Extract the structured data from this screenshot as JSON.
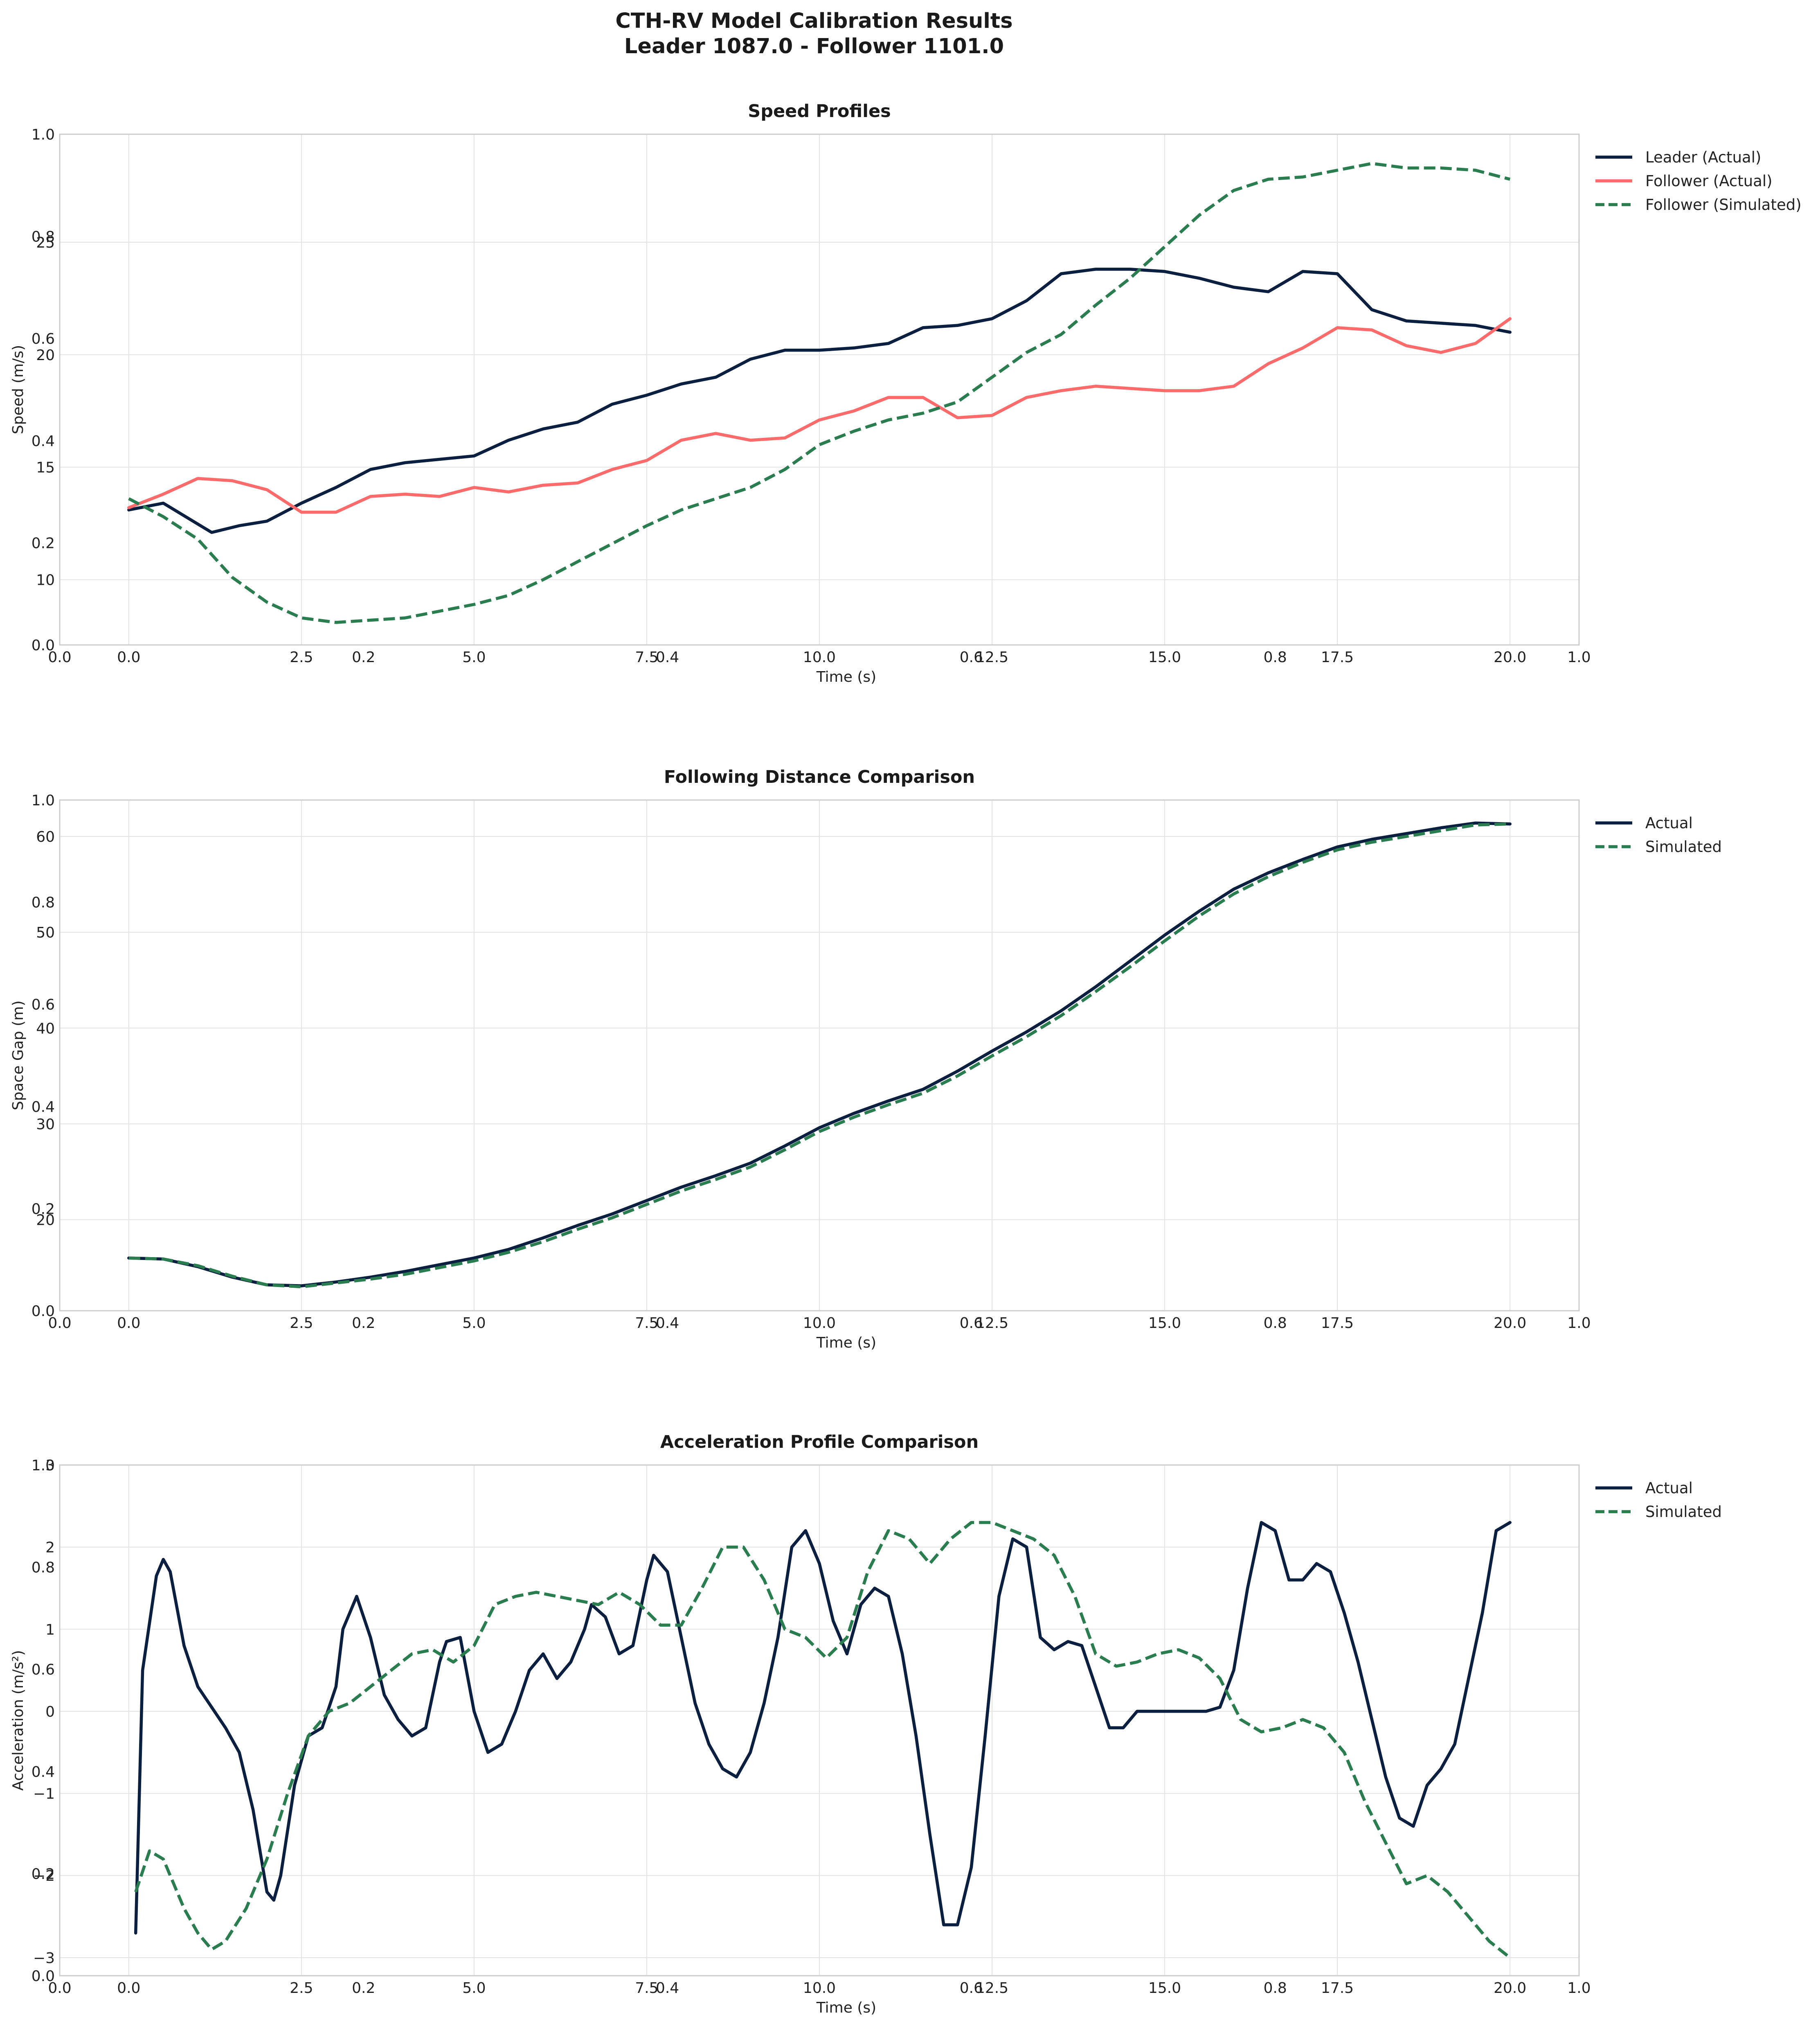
{
  "figure": {
    "title_line1": "CTH-RV Model Calibration Results",
    "title_line2": "Leader 1087.0 - Follower 1101.0"
  },
  "colors": {
    "leader": "#0b1f40",
    "follower_actual": "#ff6b6b",
    "simulated": "#2a7d4f"
  },
  "chart_data": [
    {
      "type": "line",
      "title": "Speed Profiles",
      "xlabel": "Time (s)",
      "ylabel": "Speed (m/s)",
      "xlim": [
        -1.0,
        21.0
      ],
      "ylim": [
        7.1,
        29.8
      ],
      "x_ticks": [
        "0.0",
        "2.5",
        "5.0",
        "7.5",
        "10.0",
        "12.5",
        "15.0",
        "17.5",
        "20.0"
      ],
      "y_ticks": [
        "10",
        "15",
        "20",
        "25"
      ],
      "overlay_x_ticks": [
        "0.0",
        "0.2",
        "0.4",
        "0.6",
        "0.8",
        "1.0"
      ],
      "overlay_y_ticks": [
        "0.0",
        "0.2",
        "0.4",
        "0.6",
        "0.8",
        "1.0"
      ],
      "grid": true,
      "legend_position": "outside top-right",
      "series": [
        {
          "name": "Leader (Actual)",
          "style": "solid",
          "color": "#0b1f40",
          "x": [
            0,
            0.5,
            1.2,
            1.6,
            2.0,
            2.5,
            3.0,
            3.5,
            4.0,
            5.0,
            5.5,
            6.0,
            6.5,
            7.0,
            7.5,
            8.0,
            8.5,
            9.0,
            9.5,
            10.0,
            10.5,
            11.0,
            11.5,
            12.0,
            12.5,
            13.0,
            13.5,
            14.0,
            14.5,
            15.0,
            15.5,
            16.0,
            16.5,
            17.0,
            17.5,
            18.0,
            18.5,
            19.0,
            19.5,
            20.0
          ],
          "y": [
            13.1,
            13.4,
            12.1,
            12.4,
            12.6,
            13.4,
            14.1,
            14.9,
            15.2,
            15.5,
            16.2,
            16.7,
            17.0,
            17.8,
            18.2,
            18.7,
            19.0,
            19.8,
            20.2,
            20.2,
            20.3,
            20.5,
            21.2,
            21.3,
            21.6,
            22.4,
            23.6,
            23.8,
            23.8,
            23.7,
            23.4,
            23.0,
            22.8,
            23.7,
            23.6,
            22.0,
            21.5,
            21.4,
            21.3,
            21.0
          ]
        },
        {
          "name": "Follower (Actual)",
          "style": "solid",
          "color": "#ff6b6b",
          "x": [
            0,
            0.5,
            1.0,
            1.5,
            2.0,
            2.5,
            3.0,
            3.5,
            4.0,
            4.5,
            5.0,
            5.5,
            6.0,
            6.5,
            7.0,
            7.5,
            8.0,
            8.5,
            9.0,
            9.5,
            10.0,
            10.5,
            11.0,
            11.5,
            12.0,
            12.5,
            13.0,
            13.5,
            14.0,
            14.5,
            15.0,
            15.5,
            16.0,
            16.5,
            17.0,
            17.5,
            18.0,
            18.5,
            19.0,
            19.5,
            20.0
          ],
          "y": [
            13.2,
            13.8,
            14.5,
            14.4,
            14.0,
            13.0,
            13.0,
            13.7,
            13.8,
            13.7,
            14.1,
            13.9,
            14.2,
            14.3,
            14.9,
            15.3,
            16.2,
            16.5,
            16.2,
            16.3,
            17.1,
            17.5,
            18.1,
            18.1,
            17.2,
            17.3,
            18.1,
            18.4,
            18.6,
            18.5,
            18.4,
            18.4,
            18.6,
            19.6,
            20.3,
            21.2,
            21.1,
            20.4,
            20.1,
            20.5,
            21.6
          ]
        },
        {
          "name": "Follower (Simulated)",
          "style": "dashed",
          "color": "#2a7d4f",
          "x": [
            0,
            0.5,
            1.0,
            1.5,
            2.0,
            2.5,
            3.0,
            3.5,
            4.0,
            4.5,
            5.0,
            5.5,
            6.0,
            6.5,
            7.0,
            7.5,
            8.0,
            8.5,
            9.0,
            9.5,
            10.0,
            10.5,
            11.0,
            11.5,
            12.0,
            12.5,
            13.0,
            13.5,
            14.0,
            14.5,
            15.0,
            15.5,
            16.0,
            16.5,
            17.0,
            17.5,
            18.0,
            18.5,
            19.0,
            19.5,
            20.0
          ],
          "y": [
            13.6,
            12.8,
            11.8,
            10.1,
            9.0,
            8.3,
            8.1,
            8.2,
            8.3,
            8.6,
            8.9,
            9.3,
            10.0,
            10.8,
            11.6,
            12.4,
            13.1,
            13.6,
            14.1,
            14.9,
            16.0,
            16.6,
            17.1,
            17.4,
            17.9,
            19.0,
            20.1,
            20.9,
            22.2,
            23.4,
            24.8,
            26.2,
            27.3,
            27.8,
            27.9,
            28.2,
            28.5,
            28.3,
            28.3,
            28.2,
            27.8
          ]
        }
      ]
    },
    {
      "type": "line",
      "title": "Following Distance Comparison",
      "xlabel": "Time (s)",
      "ylabel": "Space Gap (m)",
      "xlim": [
        -1.0,
        21.0
      ],
      "ylim": [
        10.5,
        63.8
      ],
      "x_ticks": [
        "0.0",
        "2.5",
        "5.0",
        "7.5",
        "10.0",
        "12.5",
        "15.0",
        "17.5",
        "20.0"
      ],
      "y_ticks": [
        "20",
        "30",
        "40",
        "50",
        "60"
      ],
      "overlay_x_ticks": [
        "0.0",
        "0.2",
        "0.4",
        "0.6",
        "0.8",
        "1.0"
      ],
      "overlay_y_ticks": [
        "0.0",
        "0.2",
        "0.4",
        "0.6",
        "0.8",
        "1.0"
      ],
      "grid": true,
      "legend_position": "outside top-right",
      "series": [
        {
          "name": "Actual",
          "style": "solid",
          "color": "#0b1f40",
          "x": [
            0,
            0.5,
            1.0,
            1.5,
            2.0,
            2.5,
            3.0,
            3.5,
            4.0,
            4.5,
            5.0,
            5.5,
            6.0,
            6.5,
            7.0,
            7.5,
            8.0,
            8.5,
            9.0,
            9.5,
            10.0,
            10.5,
            11.0,
            11.5,
            12.0,
            12.5,
            13.0,
            13.5,
            14.0,
            14.5,
            15.0,
            15.5,
            16.0,
            16.5,
            17.0,
            17.5,
            18.0,
            18.5,
            19.0,
            19.5,
            20.0
          ],
          "y": [
            16.0,
            15.9,
            15.1,
            14.0,
            13.2,
            13.1,
            13.5,
            14.0,
            14.6,
            15.3,
            16.0,
            16.9,
            18.1,
            19.4,
            20.6,
            22.0,
            23.4,
            24.6,
            25.9,
            27.7,
            29.6,
            31.1,
            32.4,
            33.6,
            35.5,
            37.6,
            39.6,
            41.8,
            44.3,
            47.0,
            49.7,
            52.2,
            54.5,
            56.2,
            57.6,
            58.9,
            59.7,
            60.3,
            60.9,
            61.4,
            61.3
          ]
        },
        {
          "name": "Simulated",
          "style": "dashed",
          "color": "#2a7d4f",
          "x": [
            0,
            0.5,
            1.0,
            1.5,
            2.0,
            2.5,
            3.0,
            3.5,
            4.0,
            4.5,
            5.0,
            5.5,
            6.0,
            6.5,
            7.0,
            7.5,
            8.0,
            8.5,
            9.0,
            9.5,
            10.0,
            10.5,
            11.0,
            11.5,
            12.0,
            12.5,
            13.0,
            13.5,
            14.0,
            14.5,
            15.0,
            15.5,
            16.0,
            16.5,
            17.0,
            17.5,
            18.0,
            18.5,
            19.0,
            19.5,
            20.0
          ],
          "y": [
            16.0,
            15.9,
            15.2,
            14.1,
            13.2,
            13.0,
            13.4,
            13.8,
            14.3,
            15.0,
            15.7,
            16.6,
            17.7,
            19.0,
            20.2,
            21.6,
            23.0,
            24.2,
            25.5,
            27.3,
            29.2,
            30.7,
            32.0,
            33.2,
            35.0,
            37.1,
            39.1,
            41.3,
            43.8,
            46.4,
            49.1,
            51.7,
            54.0,
            55.8,
            57.3,
            58.6,
            59.4,
            60.0,
            60.6,
            61.2,
            61.3
          ]
        }
      ]
    },
    {
      "type": "line",
      "title": "Acceleration Profile Comparison",
      "xlabel": "Time (s)",
      "ylabel": "Acceleration (m/s²)",
      "xlim": [
        -1.0,
        21.0
      ],
      "ylim": [
        -3.22,
        3.0
      ],
      "x_ticks": [
        "0.0",
        "2.5",
        "5.0",
        "7.5",
        "10.0",
        "12.5",
        "15.0",
        "17.5",
        "20.0"
      ],
      "y_ticks": [
        "−3",
        "−2",
        "−1",
        "0",
        "1",
        "2",
        "3"
      ],
      "overlay_x_ticks": [
        "0.0",
        "0.2",
        "0.4",
        "0.6",
        "0.8",
        "1.0"
      ],
      "overlay_y_ticks": [
        "0.0",
        "0.2",
        "0.4",
        "0.6",
        "0.8",
        "1.0"
      ],
      "grid": true,
      "legend_position": "outside top-right",
      "series": [
        {
          "name": "Actual",
          "style": "solid",
          "color": "#0b1f40",
          "x": [
            0.1,
            0.2,
            0.4,
            0.5,
            0.6,
            0.8,
            1.0,
            1.2,
            1.4,
            1.6,
            1.8,
            2.0,
            2.1,
            2.2,
            2.4,
            2.6,
            2.8,
            3.0,
            3.1,
            3.3,
            3.5,
            3.7,
            3.9,
            4.1,
            4.3,
            4.5,
            4.6,
            4.8,
            5.0,
            5.2,
            5.4,
            5.6,
            5.8,
            6.0,
            6.2,
            6.4,
            6.6,
            6.7,
            6.9,
            7.1,
            7.3,
            7.5,
            7.6,
            7.8,
            8.0,
            8.2,
            8.4,
            8.6,
            8.8,
            9.0,
            9.2,
            9.4,
            9.6,
            9.8,
            10.0,
            10.2,
            10.4,
            10.6,
            10.8,
            11.0,
            11.2,
            11.4,
            11.6,
            11.8,
            12.0,
            12.2,
            12.4,
            12.6,
            12.8,
            13.0,
            13.2,
            13.4,
            13.6,
            13.8,
            14.0,
            14.2,
            14.4,
            14.6,
            14.8,
            15.0,
            15.2,
            15.4,
            15.6,
            15.8,
            16.0,
            16.2,
            16.4,
            16.6,
            16.8,
            17.0,
            17.2,
            17.4,
            17.6,
            17.8,
            18.0,
            18.2,
            18.4,
            18.6,
            18.8,
            19.0,
            19.2,
            19.4,
            19.6,
            19.8,
            20.0
          ],
          "y": [
            -2.7,
            0.5,
            1.65,
            1.85,
            1.7,
            0.8,
            0.3,
            0.05,
            -0.2,
            -0.5,
            -1.2,
            -2.2,
            -2.3,
            -2.0,
            -0.9,
            -0.3,
            -0.2,
            0.3,
            1.0,
            1.4,
            0.9,
            0.2,
            -0.1,
            -0.3,
            -0.2,
            0.6,
            0.85,
            0.9,
            0.0,
            -0.5,
            -0.4,
            0.0,
            0.5,
            0.7,
            0.4,
            0.6,
            1.0,
            1.3,
            1.15,
            0.7,
            0.8,
            1.6,
            1.9,
            1.7,
            0.9,
            0.1,
            -0.4,
            -0.7,
            -0.8,
            -0.5,
            0.1,
            0.9,
            2.0,
            2.2,
            1.8,
            1.1,
            0.7,
            1.3,
            1.5,
            1.4,
            0.7,
            -0.3,
            -1.5,
            -2.6,
            -2.6,
            -1.9,
            -0.3,
            1.4,
            2.1,
            2.0,
            0.9,
            0.75,
            0.85,
            0.8,
            0.3,
            -0.2,
            -0.2,
            0.0,
            0.0,
            0.0,
            0.0,
            0.0,
            0.0,
            0.05,
            0.5,
            1.5,
            2.3,
            2.2,
            1.6,
            1.6,
            1.8,
            1.7,
            1.2,
            0.6,
            -0.1,
            -0.8,
            -1.3,
            -1.4,
            -0.9,
            -0.7,
            -0.4,
            0.4,
            1.2,
            2.2,
            2.3
          ]
        },
        {
          "name": "Simulated",
          "style": "dashed",
          "color": "#2a7d4f",
          "x": [
            0.1,
            0.3,
            0.5,
            0.8,
            1.0,
            1.2,
            1.4,
            1.7,
            2.0,
            2.3,
            2.6,
            2.9,
            3.2,
            3.5,
            3.8,
            4.1,
            4.4,
            4.7,
            5.0,
            5.3,
            5.6,
            5.9,
            6.2,
            6.5,
            6.8,
            7.1,
            7.4,
            7.7,
            8.0,
            8.3,
            8.6,
            8.9,
            9.2,
            9.5,
            9.8,
            10.1,
            10.4,
            10.7,
            11.0,
            11.3,
            11.6,
            11.9,
            12.2,
            12.5,
            12.8,
            13.1,
            13.4,
            13.7,
            14.0,
            14.3,
            14.6,
            14.9,
            15.2,
            15.5,
            15.8,
            16.1,
            16.4,
            16.7,
            17.0,
            17.3,
            17.6,
            17.9,
            18.2,
            18.5,
            18.8,
            19.1,
            19.4,
            19.7,
            20.0
          ],
          "y": [
            -2.2,
            -1.7,
            -1.8,
            -2.4,
            -2.7,
            -2.9,
            -2.8,
            -2.4,
            -1.8,
            -1.0,
            -0.3,
            0.0,
            0.1,
            0.3,
            0.5,
            0.7,
            0.75,
            0.6,
            0.8,
            1.3,
            1.4,
            1.45,
            1.4,
            1.35,
            1.3,
            1.45,
            1.3,
            1.05,
            1.05,
            1.5,
            2.0,
            2.0,
            1.6,
            1.0,
            0.9,
            0.65,
            0.9,
            1.7,
            2.2,
            2.1,
            1.8,
            2.1,
            2.3,
            2.3,
            2.2,
            2.1,
            1.9,
            1.4,
            0.7,
            0.55,
            0.6,
            0.7,
            0.75,
            0.65,
            0.4,
            -0.1,
            -0.25,
            -0.2,
            -0.1,
            -0.2,
            -0.5,
            -1.1,
            -1.6,
            -2.1,
            -2.0,
            -2.2,
            -2.5,
            -2.8,
            -3.0
          ]
        }
      ]
    }
  ]
}
